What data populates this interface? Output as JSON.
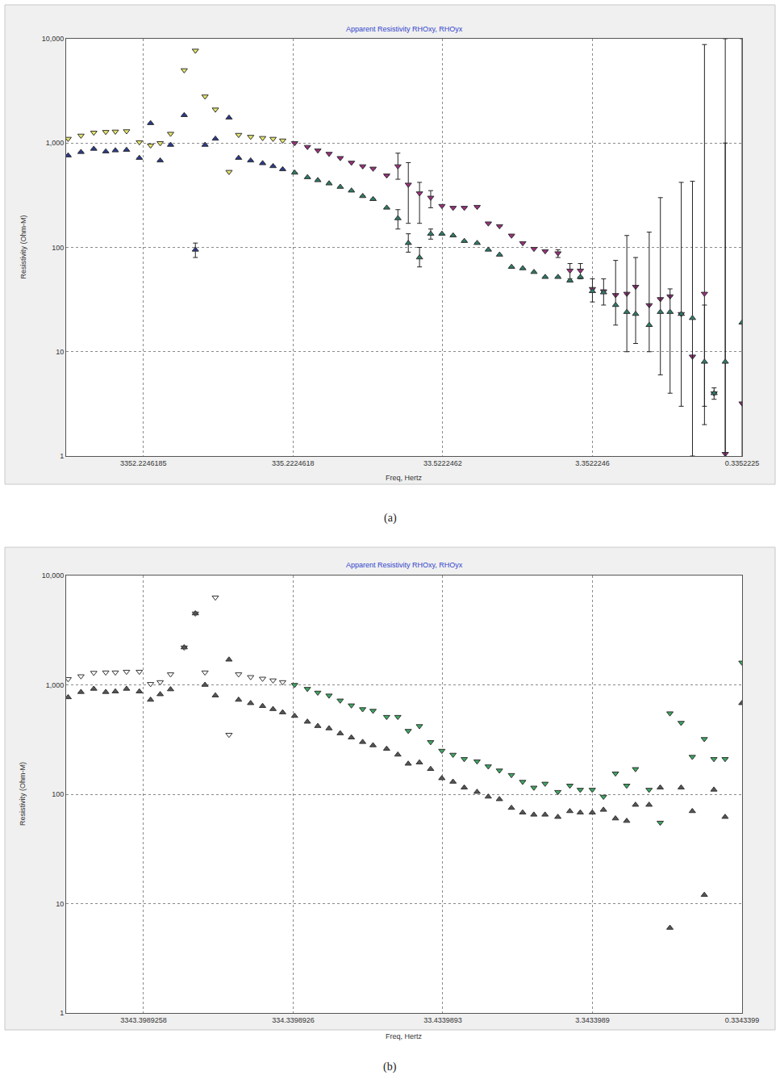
{
  "chart_data": [
    {
      "type": "scatter",
      "title": "Apparent Resistivity RHOxy, RHOyx",
      "x_label": "Freq, Hertz",
      "y_label": "Resistivity (Ohm-M)",
      "annotations": [
        "(a)"
      ],
      "log": true,
      "grid": true,
      "xlim": [
        11000,
        0.3352225
      ],
      "xticks": [
        3352.2246185,
        335.2224618,
        33.5222462,
        3.3522246,
        0.3352225
      ],
      "ylim": [
        1,
        10000
      ],
      "yticks": [
        1,
        10,
        100,
        {
          "value": 1000,
          "label": "1,000"
        },
        {
          "value": 10000,
          "label": "10,000"
        }
      ],
      "series": [
        {
          "color": "#e4e46a",
          "marker": "triangle-down",
          "x": [
            10666,
            8758,
            7192,
            5980,
            5159,
            4342,
            3565,
            3001,
            2588,
            2206,
            1789,
            1506,
            1299,
            1107,
            897.7,
            774.4,
            643.6,
            535.4,
            455.9,
            393.2
          ],
          "values": [
            1100,
            1180,
            1260,
            1280,
            1290,
            1300,
            1020,
            950,
            1000,
            1230,
            5000,
            7700,
            2800,
            2100,
            530,
            1200,
            1150,
            1120,
            1100,
            1060
          ]
        },
        {
          "color": "#2b3a8c",
          "marker": "triangle-up",
          "x": [
            10666,
            8758,
            7192,
            5980,
            5159,
            4342,
            3565,
            3001,
            2588,
            2206,
            1789,
            1506,
            1299,
            1107,
            897.7,
            774.4,
            643.6,
            535.4,
            455.9,
            393.2
          ],
          "values": [
            760,
            820,
            880,
            830,
            850,
            860,
            720,
            1550,
            680,
            960,
            1850,
            95,
            960,
            1100,
            1750,
            720,
            680,
            640,
            600,
            560
          ],
          "error_minus": [
            null,
            null,
            null,
            null,
            null,
            null,
            null,
            null,
            null,
            null,
            null,
            15,
            null,
            null,
            null,
            null,
            null,
            null,
            null,
            null
          ],
          "error_plus": [
            null,
            null,
            null,
            null,
            null,
            null,
            null,
            null,
            null,
            null,
            null,
            15,
            null,
            null,
            null,
            null,
            null,
            null,
            null,
            null
          ]
        },
        {
          "color": "#9a2f7e",
          "marker": "triangle-down",
          "x": [
            327.1,
            268.6,
            229.0,
            192.6,
            162.1,
            136.5,
            114.8,
            97.85,
            79.35,
            66.81,
            56.92,
            47.9,
            40.33,
            33.93,
            28.57,
            24.04,
            19.74,
            16.62,
            13.99,
            11.63,
            9.786,
            8.236,
            6.933,
            5.692,
            4.733,
            4.033,
            3.352,
            2.822,
            2.346,
            1.974,
            1.724,
            1.399,
            1.178,
            1.015,
            0.8546,
            0.7193,
            0.598,
            0.5159,
            0.4342,
            0.3352
          ],
          "values": [
            1000,
            920,
            850,
            790,
            720,
            650,
            600,
            570,
            490,
            600,
            400,
            330,
            300,
            250,
            240,
            240,
            245,
            170,
            160,
            130,
            110,
            97,
            92,
            88,
            60,
            60,
            40,
            38,
            35,
            36,
            42,
            28,
            32,
            34,
            23,
            9,
            36,
            4,
            1.05,
            3.2
          ],
          "error_minus": [
            null,
            null,
            null,
            null,
            null,
            null,
            null,
            null,
            null,
            150,
            230,
            160,
            60,
            null,
            null,
            null,
            null,
            null,
            null,
            null,
            null,
            null,
            null,
            8,
            10,
            10,
            null,
            null,
            null,
            null,
            null,
            null,
            null,
            null,
            null,
            null,
            33,
            null,
            0.1,
            null
          ],
          "error_plus": [
            null,
            null,
            null,
            null,
            null,
            null,
            null,
            null,
            null,
            200,
            250,
            90,
            50,
            null,
            null,
            null,
            null,
            null,
            null,
            null,
            null,
            null,
            null,
            7,
            10,
            10,
            null,
            null,
            null,
            null,
            null,
            null,
            null,
            null,
            null,
            null,
            8764,
            null,
            999,
            null
          ]
        },
        {
          "color": "#2e7a68",
          "marker": "triangle-up",
          "x": [
            327.1,
            268.6,
            229.0,
            192.6,
            162.1,
            136.5,
            114.8,
            97.85,
            79.35,
            66.81,
            56.92,
            47.9,
            40.33,
            33.93,
            28.57,
            24.04,
            19.74,
            16.62,
            13.99,
            11.63,
            9.786,
            8.236,
            6.933,
            5.692,
            4.733,
            4.033,
            3.352,
            2.822,
            2.346,
            1.974,
            1.724,
            1.399,
            1.178,
            1.015,
            0.8546,
            0.7193,
            0.598,
            0.5159,
            0.4342,
            0.3352
          ],
          "values": [
            520,
            470,
            440,
            410,
            380,
            350,
            310,
            290,
            240,
            190,
            110,
            80,
            135,
            135,
            130,
            115,
            110,
            95,
            85,
            65,
            63,
            58,
            52,
            52,
            48,
            52,
            38,
            37,
            28,
            24,
            23,
            18,
            24,
            24,
            23,
            21,
            8,
            4,
            8,
            19
          ],
          "error_minus": [
            null,
            null,
            null,
            null,
            null,
            null,
            null,
            null,
            null,
            40,
            20,
            15,
            15,
            null,
            null,
            null,
            null,
            null,
            null,
            null,
            null,
            null,
            null,
            null,
            null,
            null,
            8,
            9,
            10,
            14,
            11,
            8,
            18,
            20,
            20,
            20,
            6,
            0.5,
            7.5,
            18.5
          ],
          "error_plus": [
            null,
            null,
            null,
            null,
            null,
            null,
            null,
            null,
            null,
            40,
            25,
            20,
            15,
            null,
            null,
            null,
            null,
            null,
            null,
            null,
            null,
            null,
            null,
            null,
            null,
            null,
            12,
            13,
            47,
            106,
            57,
            122,
            276,
            16,
            397,
            409,
            20,
            0.5,
            10000,
            10000
          ]
        }
      ]
    },
    {
      "type": "scatter",
      "title": "Apparent Resistivity RHOxy, RHOyx",
      "x_label": "Freq, Hertz",
      "y_label": "Resistivity (Ohm-M)",
      "annotations": [
        "(b)"
      ],
      "log": true,
      "grid": true,
      "xlim": [
        11000,
        0.3343399
      ],
      "xticks": [
        3343.3989258,
        334.3398926,
        33.4339893,
        3.3433989,
        0.3343399
      ],
      "ylim": [
        1,
        10000
      ],
      "yticks": [
        1,
        10,
        100,
        {
          "value": 1000,
          "label": "1,000"
        },
        {
          "value": 10000,
          "label": "10,000"
        }
      ],
      "series": [
        {
          "color": "#ffffff",
          "marker": "triangle-down",
          "x": [
            10666,
            8758,
            7192,
            5980,
            5159,
            4342,
            3565,
            3001,
            2588,
            2206,
            1789,
            1506,
            1299,
            1107,
            897.7,
            774.4,
            643.6,
            535.4,
            455.9,
            393.2
          ],
          "values": [
            1130,
            1200,
            1290,
            1300,
            1300,
            1320,
            1320,
            1020,
            1060,
            1250,
            2200,
            4500,
            1300,
            6300,
            350,
            1250,
            1180,
            1140,
            1100,
            1060
          ]
        },
        {
          "color": "#555555",
          "marker": "triangle-up",
          "x": [
            10666,
            8758,
            7192,
            5980,
            5159,
            4342,
            3565,
            3001,
            2588,
            2206,
            1789,
            1506,
            1299,
            1107,
            897.7,
            774.4,
            643.6,
            535.4,
            455.9,
            393.2
          ],
          "values": [
            770,
            860,
            920,
            860,
            870,
            920,
            870,
            730,
            820,
            910,
            2200,
            4500,
            1000,
            800,
            1700,
            730,
            680,
            640,
            600,
            560
          ]
        },
        {
          "color": "#3aa860",
          "marker": "triangle-down",
          "x": [
            327.1,
            268.6,
            229.0,
            192.6,
            162.1,
            136.5,
            114.8,
            97.85,
            79.35,
            66.81,
            56.92,
            47.9,
            40.33,
            33.93,
            28.57,
            24.04,
            19.74,
            16.62,
            13.99,
            11.63,
            9.786,
            8.236,
            6.933,
            5.692,
            4.733,
            4.033,
            3.352,
            2.822,
            2.346,
            1.974,
            1.724,
            1.399,
            1.178,
            1.015,
            0.8546,
            0.7193,
            0.598,
            0.5159,
            0.4342,
            0.3352
          ],
          "values": [
            1000,
            920,
            850,
            800,
            720,
            650,
            600,
            580,
            510,
            510,
            380,
            420,
            300,
            250,
            230,
            210,
            200,
            180,
            165,
            150,
            130,
            115,
            125,
            105,
            120,
            110,
            110,
            95,
            155,
            120,
            170,
            110,
            55,
            550,
            450,
            220,
            320,
            210,
            210,
            1600
          ]
        },
        {
          "color": "#555555",
          "marker": "triangle-up",
          "x": [
            327.1,
            268.6,
            229.0,
            192.6,
            162.1,
            136.5,
            114.8,
            97.85,
            79.35,
            66.81,
            56.92,
            47.9,
            40.33,
            33.93,
            28.57,
            24.04,
            19.74,
            16.62,
            13.99,
            11.63,
            9.786,
            8.236,
            6.933,
            5.692,
            4.733,
            4.033,
            3.352,
            2.822,
            2.346,
            1.974,
            1.724,
            1.399,
            1.178,
            1.015,
            0.8546,
            0.7193,
            0.598,
            0.5159,
            0.4342,
            0.3352
          ],
          "values": [
            520,
            460,
            420,
            400,
            360,
            330,
            300,
            280,
            260,
            230,
            190,
            195,
            170,
            140,
            130,
            115,
            105,
            95,
            90,
            75,
            68,
            65,
            65,
            62,
            70,
            68,
            68,
            72,
            60,
            57,
            80,
            80,
            115,
            6,
            115,
            70,
            12,
            110,
            62,
            680
          ]
        }
      ]
    }
  ]
}
